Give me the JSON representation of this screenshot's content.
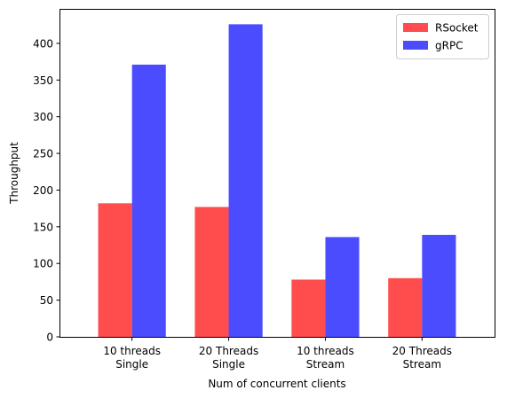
{
  "chart_data": {
    "type": "bar",
    "categories": [
      [
        "10 threads",
        "Single"
      ],
      [
        "20 Threads",
        "Single"
      ],
      [
        "10 threads",
        "Stream"
      ],
      [
        "20 Threads",
        "Stream"
      ]
    ],
    "series": [
      {
        "name": "RSocket",
        "color": "#ff4c4c",
        "values": [
          182,
          177,
          78,
          80
        ]
      },
      {
        "name": "gRPC",
        "color": "#4c4cff",
        "values": [
          371,
          426,
          136,
          139
        ]
      }
    ],
    "xlabel": "Num of concurrent clients",
    "ylabel": "Throughput",
    "ylim": [
      0,
      447
    ],
    "yticks": [
      0,
      50,
      100,
      150,
      200,
      250,
      300,
      350,
      400
    ],
    "legend_position": "top-right",
    "grid": false
  }
}
